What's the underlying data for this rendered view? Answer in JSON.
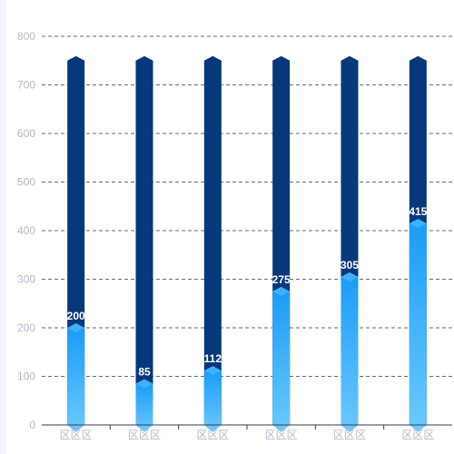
{
  "chart_data": {
    "type": "bar",
    "categories": [
      "区区区",
      "区区区",
      "区区区",
      "区区区",
      "区区区",
      "区区区"
    ],
    "values": [
      200,
      85,
      112,
      275,
      305,
      415
    ],
    "background_values": [
      750,
      750,
      750,
      750,
      750,
      750
    ],
    "ylim": [
      0,
      800
    ],
    "yticks": [
      0,
      100,
      200,
      300,
      400,
      500,
      600,
      700,
      800
    ],
    "grid": "dashed horizontal",
    "colors": {
      "background_bar": "#06387b",
      "bar_top": "#1b9cf8",
      "bar_bottom": "#6cc9ff",
      "bar_cap": "#3db0ff",
      "grid": "#3a3a4a",
      "tick_text": "#b4b8c8",
      "value_text": "#ffffff"
    }
  }
}
